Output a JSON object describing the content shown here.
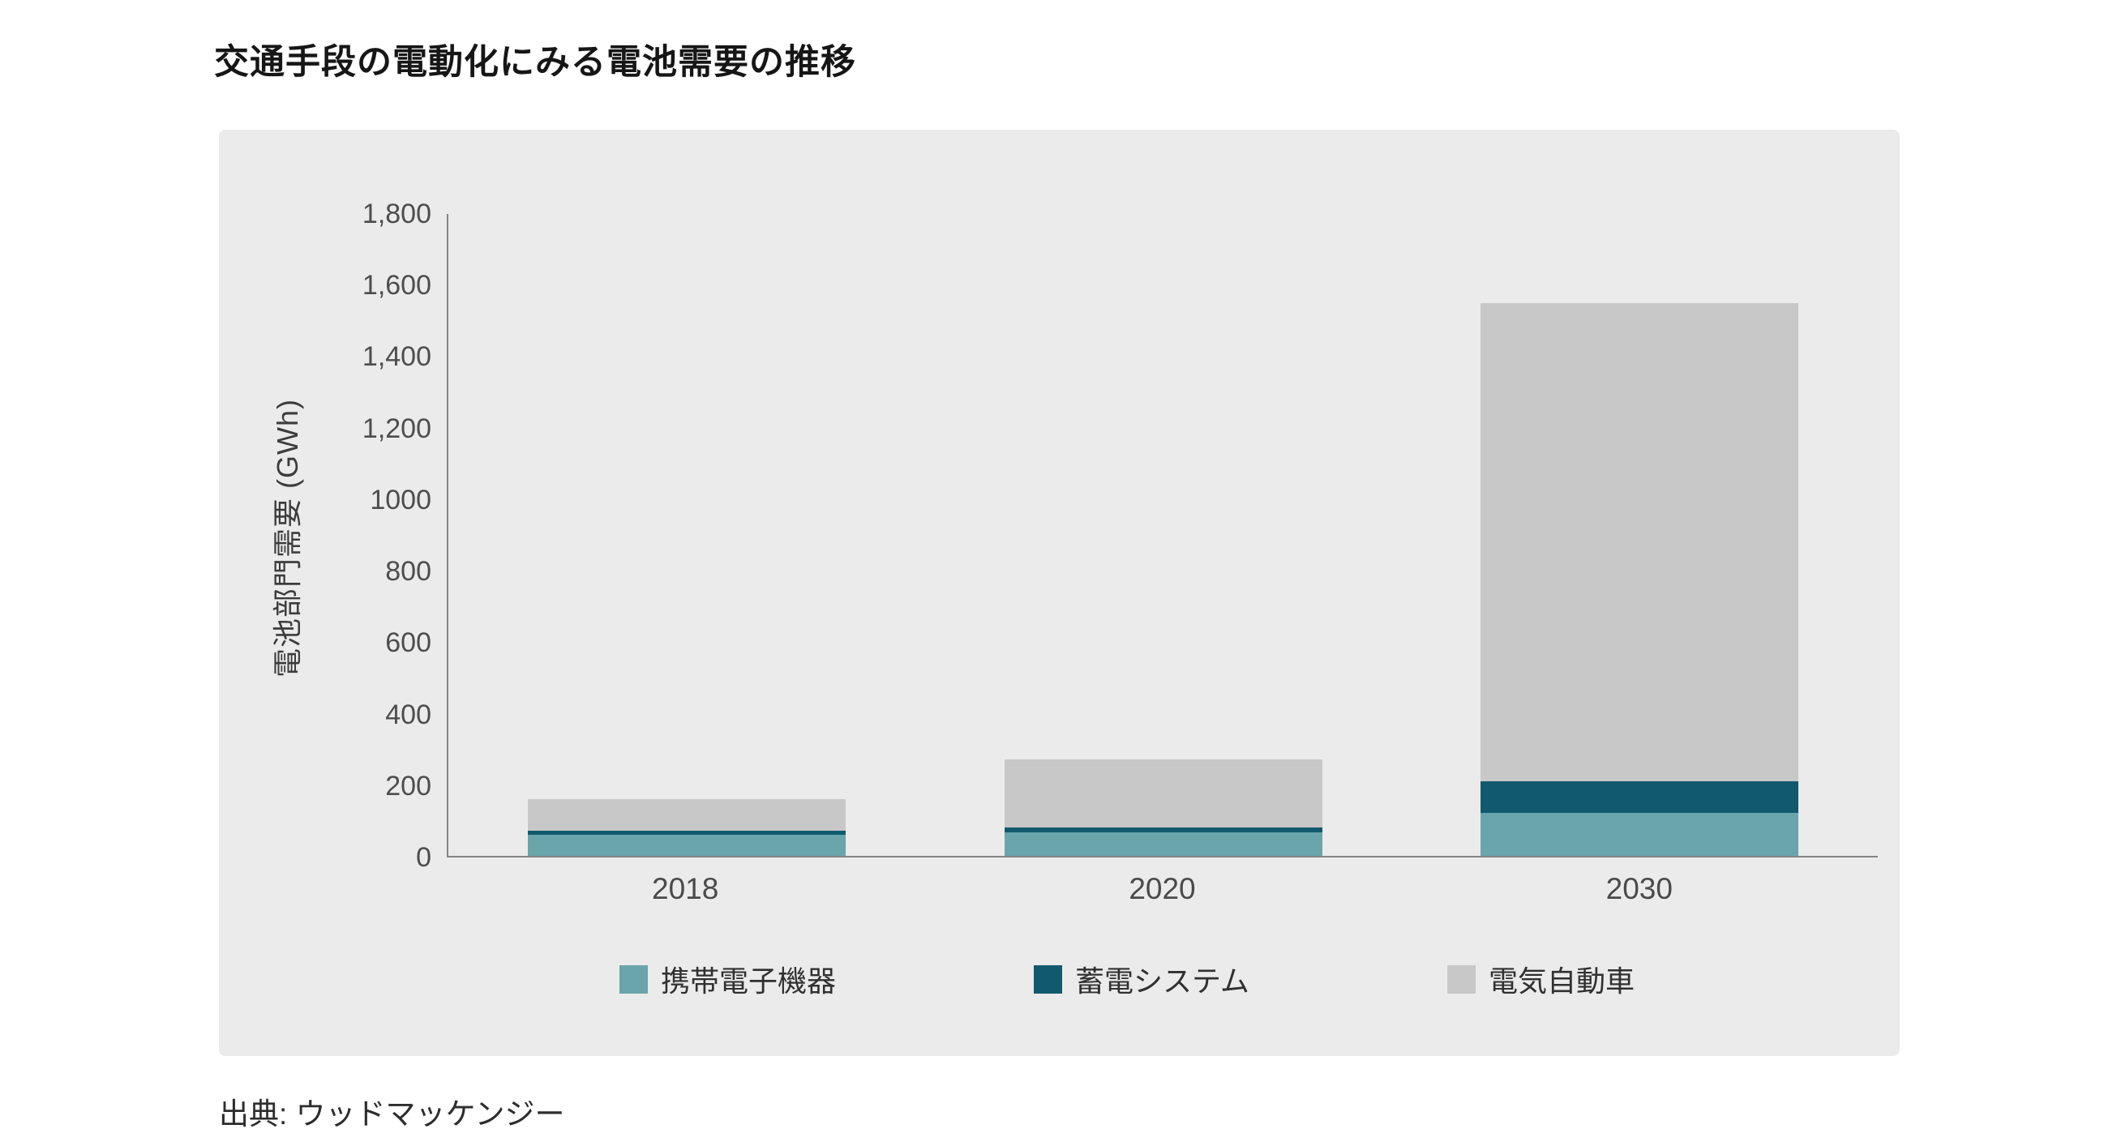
{
  "title": "交通手段の電動化にみる電池需要の推移",
  "source": "出典: ウッドマッケンジー",
  "panel": {
    "background": "#ebebeb",
    "axis_color": "#848484"
  },
  "chart_data": {
    "type": "bar",
    "stacked": true,
    "title": "交通手段の電動化にみる電池需要の推移",
    "ylabel": "電池部門需要 (GWh)",
    "xlabel": "",
    "ylim": [
      0,
      1800
    ],
    "grid": false,
    "legend_position": "bottom",
    "categories": [
      "2018",
      "2020",
      "2030"
    ],
    "ytick_values": [
      0,
      200,
      400,
      600,
      800,
      1000,
      1200,
      1400,
      1600,
      1800
    ],
    "ytick_labels": [
      "0",
      "200",
      "400",
      "600",
      "800",
      "1000",
      "1,200",
      "1,400",
      "1,600",
      "1,800"
    ],
    "series": [
      {
        "id": "portable-electronics",
        "name": "携帯電子機器",
        "color": "#69a5ab",
        "values": [
          60,
          65,
          120
        ]
      },
      {
        "id": "storage-systems",
        "name": "蓄電システム",
        "color": "#115a6e",
        "values": [
          10,
          15,
          90
        ]
      },
      {
        "id": "electric-vehicles",
        "name": "電気自動車",
        "color": "#c8c8c8",
        "values": [
          90,
          190,
          1340
        ]
      }
    ]
  }
}
